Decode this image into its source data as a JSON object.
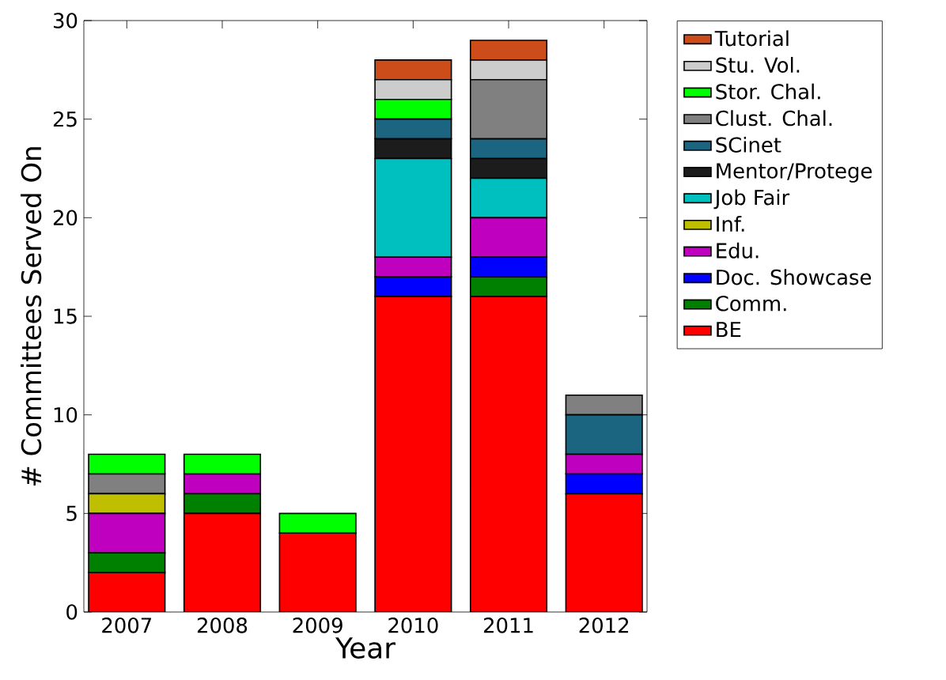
{
  "chart_data": {
    "type": "bar",
    "stacked": true,
    "xlabel": "Year",
    "ylabel": "# Committees Served On",
    "categories": [
      "2007",
      "2008",
      "2009",
      "2010",
      "2011",
      "2012"
    ],
    "ylim": [
      0,
      30
    ],
    "yticks": [
      0,
      5,
      10,
      15,
      20,
      25,
      30
    ],
    "legend": "top right",
    "series": [
      {
        "name": "BE",
        "color": "#ff0000",
        "values": [
          2,
          5,
          4,
          16,
          16,
          6
        ]
      },
      {
        "name": "Comm.",
        "color": "#008000",
        "values": [
          1,
          1,
          0,
          0,
          1,
          0
        ]
      },
      {
        "name": "Doc. Showcase",
        "color": "#0000ff",
        "values": [
          0,
          0,
          0,
          1,
          1,
          1
        ]
      },
      {
        "name": "Edu.",
        "color": "#bf00bf",
        "values": [
          2,
          1,
          0,
          1,
          2,
          1
        ]
      },
      {
        "name": "Inf.",
        "color": "#bfbf00",
        "values": [
          1,
          0,
          0,
          0,
          0,
          0
        ]
      },
      {
        "name": "Job Fair",
        "color": "#00bfbf",
        "values": [
          0,
          0,
          0,
          5,
          2,
          0
        ]
      },
      {
        "name": "Mentor/Protege",
        "color": "#1c1c1c",
        "values": [
          0,
          0,
          0,
          1,
          1,
          0
        ]
      },
      {
        "name": "SCinet",
        "color": "#1c6580",
        "values": [
          0,
          0,
          0,
          1,
          1,
          2
        ]
      },
      {
        "name": "Clust. Chal.",
        "color": "#808080",
        "values": [
          1,
          0,
          0,
          0,
          3,
          1
        ]
      },
      {
        "name": "Stor. Chal.",
        "color": "#00ff00",
        "values": [
          1,
          1,
          1,
          1,
          0,
          0
        ]
      },
      {
        "name": "Stu. Vol.",
        "color": "#cccccc",
        "values": [
          0,
          0,
          0,
          1,
          1,
          0
        ]
      },
      {
        "name": "Tutorial",
        "color": "#cc4c1a",
        "values": [
          0,
          0,
          0,
          1,
          1,
          0
        ]
      }
    ]
  }
}
